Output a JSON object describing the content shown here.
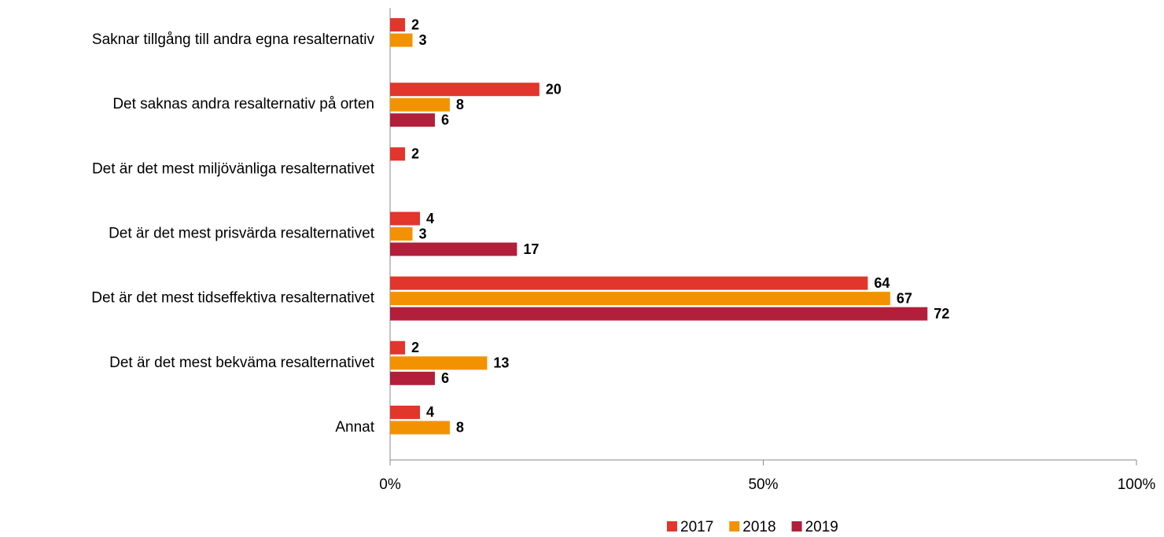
{
  "chart_data": {
    "type": "hbar",
    "categories": [
      "Saknar tillgång till andra egna resalternativ",
      "Det saknas andra resalternativ på orten",
      "Det är det mest miljövänliga resalternativet",
      "Det är det mest prisvärda resalternativet",
      "Det är det mest tidseffektiva resalternativet",
      "Det är det mest bekväma resalternativet",
      "Annat"
    ],
    "series": [
      {
        "name": "2017",
        "color": "#e2352b",
        "values": [
          2,
          20,
          2,
          4,
          64,
          2,
          4
        ]
      },
      {
        "name": "2018",
        "color": "#f39200",
        "values": [
          3,
          8,
          null,
          3,
          67,
          13,
          8
        ]
      },
      {
        "name": "2019",
        "color": "#b11f3b",
        "values": [
          null,
          6,
          null,
          17,
          72,
          6,
          null
        ]
      }
    ],
    "xlim": [
      0,
      100
    ],
    "xticks": [
      {
        "value": 0,
        "label": "0%"
      },
      {
        "value": 50,
        "label": "50%"
      },
      {
        "value": 100,
        "label": "100%"
      }
    ],
    "legend": "bottom"
  }
}
